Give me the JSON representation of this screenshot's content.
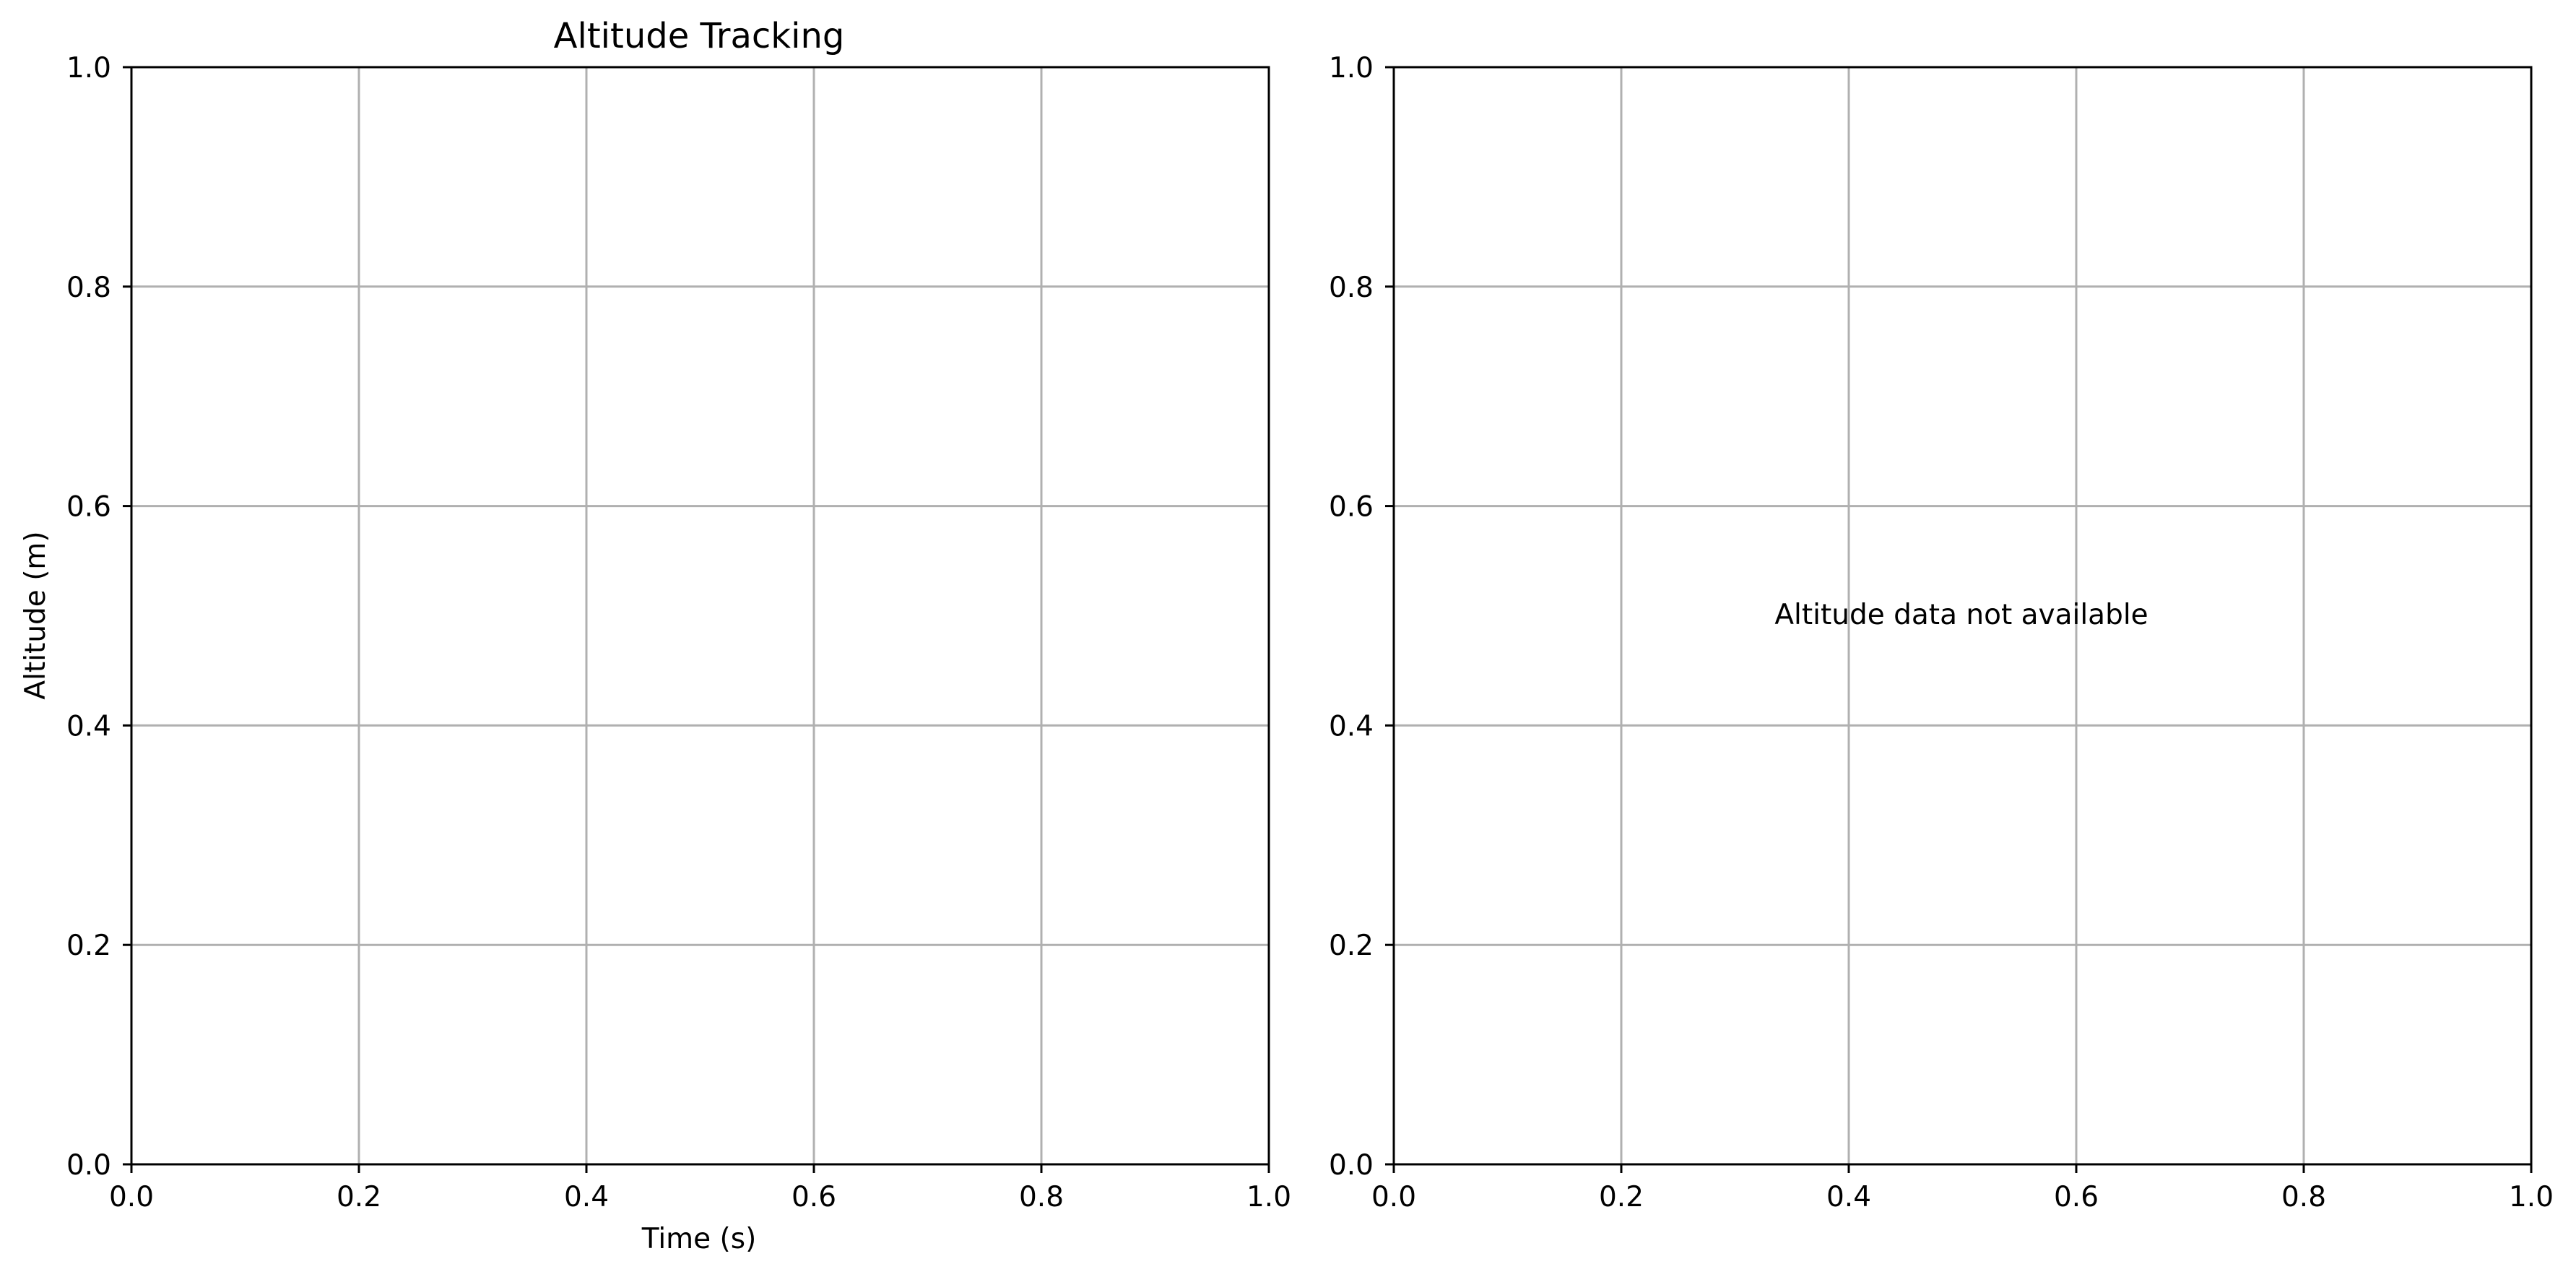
{
  "chart_data": [
    {
      "type": "line",
      "title": "Altitude Tracking",
      "xlabel": "Time (s)",
      "ylabel": "Altitude (m)",
      "xlim": [
        0.0,
        1.0
      ],
      "ylim": [
        0.0,
        1.0
      ],
      "xticks": [
        "0.0",
        "0.2",
        "0.4",
        "0.6",
        "0.8",
        "1.0"
      ],
      "yticks": [
        "0.0",
        "0.2",
        "0.4",
        "0.6",
        "0.8",
        "1.0"
      ],
      "grid": true,
      "series": [],
      "annotation": ""
    },
    {
      "type": "line",
      "title": "",
      "xlabel": "",
      "ylabel": "",
      "xlim": [
        0.0,
        1.0
      ],
      "ylim": [
        0.0,
        1.0
      ],
      "xticks": [
        "0.0",
        "0.2",
        "0.4",
        "0.6",
        "0.8",
        "1.0"
      ],
      "yticks": [
        "0.0",
        "0.2",
        "0.4",
        "0.6",
        "0.8",
        "1.0"
      ],
      "grid": true,
      "series": [],
      "annotation": "Altitude data not available"
    }
  ],
  "colors": {
    "grid": "#b0b0b0",
    "axis": "#000000",
    "background": "#ffffff"
  }
}
